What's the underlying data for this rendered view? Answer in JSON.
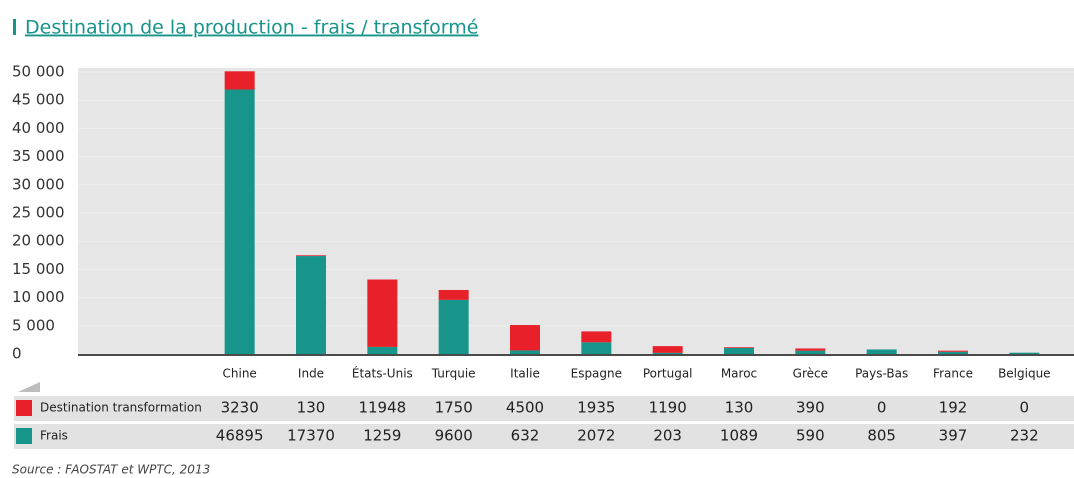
{
  "chart_data": {
    "type": "stacked-bar",
    "title": "Destination de la production - frais / transformé",
    "categories": [
      "Chine",
      "Inde",
      "États-Unis",
      "Turquie",
      "Italie",
      "Espagne",
      "Portugal",
      "Maroc",
      "Grèce",
      "Pays-Bas",
      "France",
      "Belgique"
    ],
    "series": [
      {
        "name": "Destination transformation",
        "color": "#e8202a",
        "values": [
          3230,
          130,
          11948,
          1750,
          4500,
          1935,
          1190,
          130,
          390,
          0,
          192,
          0
        ]
      },
      {
        "name": "Frais",
        "color": "#17958b",
        "values": [
          46895,
          17370,
          1259,
          9600,
          632,
          2072,
          203,
          1089,
          590,
          805,
          397,
          232
        ]
      }
    ],
    "ylim": [
      0,
      50000
    ],
    "yticks": [
      0,
      {
        "value": 5000,
        "label": "5 000"
      },
      {
        "value": 10000,
        "label": "10 000"
      },
      {
        "value": 15000,
        "label": "15 000"
      },
      {
        "value": 20000,
        "label": "20 000"
      },
      {
        "value": 25000,
        "label": "25 000"
      },
      {
        "value": 30000,
        "label": "30 000"
      },
      {
        "value": 35000,
        "label": "35 000"
      },
      {
        "value": 40000,
        "label": "40 000"
      },
      {
        "value": 45000,
        "label": "45 000"
      },
      {
        "value": 50000,
        "label": "50 000"
      }
    ],
    "source": "Source : FAOSTAT et WPTC, 2013"
  }
}
